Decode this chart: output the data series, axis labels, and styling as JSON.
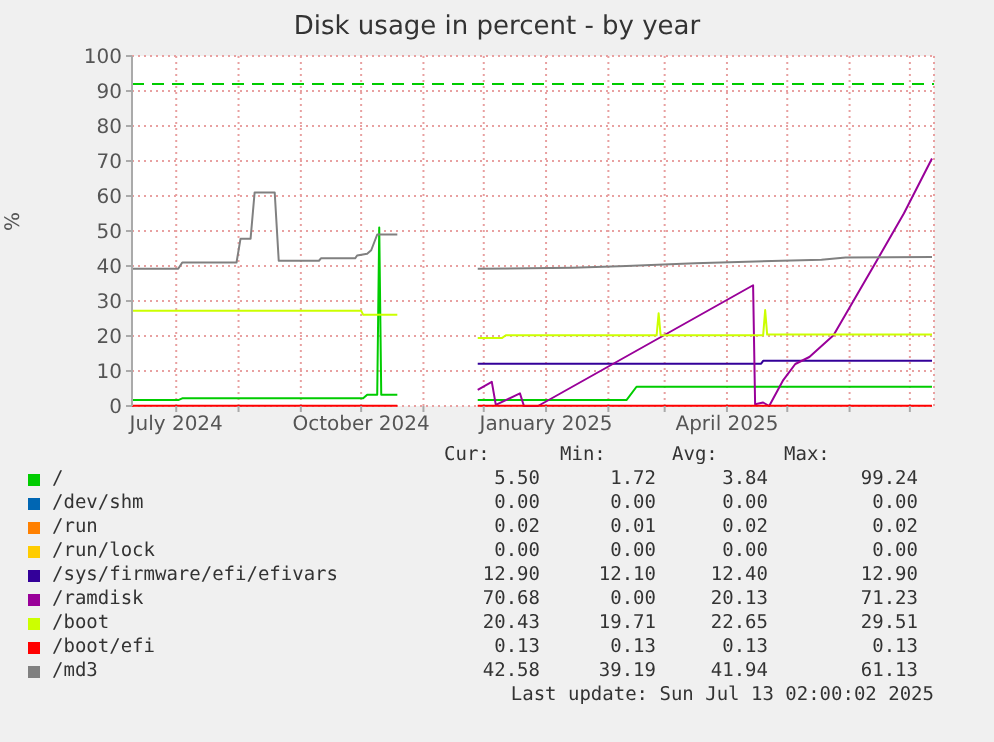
{
  "chart_data": {
    "type": "line",
    "title": "Disk usage in percent - by year",
    "ylabel": "%",
    "xlim": [
      "2024-06-09",
      "2025-07-13"
    ],
    "xticks": [
      {
        "value": "2024-07-01",
        "label": "July 2024"
      },
      {
        "value": "2024-08-01",
        "label": null
      },
      {
        "value": "2024-09-01",
        "label": null
      },
      {
        "value": "2024-10-01",
        "label": "October 2024"
      },
      {
        "value": "2024-11-01",
        "label": null
      },
      {
        "value": "2024-12-01",
        "label": null
      },
      {
        "value": "2025-01-01",
        "label": "January 2025"
      },
      {
        "value": "2025-02-01",
        "label": null
      },
      {
        "value": "2025-03-01",
        "label": null
      },
      {
        "value": "2025-04-01",
        "label": "April 2025"
      },
      {
        "value": "2025-05-01",
        "label": null
      },
      {
        "value": "2025-06-01",
        "label": null
      },
      {
        "value": "2025-07-01",
        "label": null
      }
    ],
    "ylim": [
      0,
      100
    ],
    "yticks": [
      0,
      10,
      20,
      30,
      40,
      50,
      60,
      70,
      80,
      90,
      100
    ],
    "grid": true,
    "legend": "bottom",
    "ref_lines": [
      {
        "axis": "y",
        "value": 92,
        "color": "#00cc00",
        "line_style": "dashed"
      }
    ],
    "series": [
      {
        "name": "/",
        "color": "#00cc00",
        "x": [
          "2024-06-09",
          "2024-07-02",
          "2024-07-04",
          "2024-10-02",
          "2024-10-04",
          "2024-10-09",
          "2024-10-10",
          "2024-10-11",
          "2024-10-19",
          "2024-11-01",
          "2024-11-28",
          "2025-02-10",
          "2025-02-15",
          "2025-07-12"
        ],
        "values": [
          1.7,
          1.7,
          2.2,
          2.2,
          3.2,
          3.2,
          51,
          3.2,
          3.2,
          null,
          1.7,
          1.7,
          5.5,
          5.5
        ]
      },
      {
        "name": "/dev/shm",
        "color": "#0066b3"
      },
      {
        "name": "/run",
        "color": "#ff8000"
      },
      {
        "name": "/run/lock",
        "color": "#ffcc00"
      },
      {
        "name": "/sys/firmware/efi/efivars",
        "color": "#330099",
        "x": [
          "2024-11-28",
          "2025-04-18",
          "2025-04-19",
          "2025-07-12"
        ],
        "values": [
          12.1,
          12.1,
          12.9,
          12.9
        ]
      },
      {
        "name": "/ramdisk",
        "color": "#990099",
        "x": [
          "2024-11-28",
          "2024-12-05",
          "2024-12-07",
          "2024-12-19",
          "2024-12-21",
          "2024-12-28",
          "2025-04-14",
          "2025-04-15",
          "2025-04-19",
          "2025-04-22",
          "2025-04-29",
          "2025-05-05",
          "2025-05-12",
          "2025-05-24",
          "2025-06-14",
          "2025-06-28",
          "2025-07-12"
        ],
        "values": [
          4.6,
          6.9,
          0.3,
          3.6,
          0,
          0,
          34.5,
          0.5,
          1,
          0,
          7.4,
          12,
          14,
          20.2,
          41,
          55,
          70.7
        ]
      },
      {
        "name": "/boot",
        "color": "#ccff00",
        "x": [
          "2024-06-09",
          "2024-10-01",
          "2024-10-02",
          "2024-10-19",
          "2024-11-01",
          "2024-11-28",
          "2024-12-10",
          "2024-12-12",
          "2025-02-25",
          "2025-02-26",
          "2025-02-27",
          "2025-04-19",
          "2025-04-20",
          "2025-04-21",
          "2025-07-12"
        ],
        "values": [
          27.2,
          27.2,
          26.1,
          26.1,
          null,
          19.4,
          19.4,
          20.2,
          20.2,
          26.5,
          20.2,
          20.2,
          27.4,
          20.4,
          20.4
        ]
      },
      {
        "name": "/boot/efi",
        "color": "#ff0000",
        "x": [
          "2024-06-09",
          "2024-10-19",
          "2024-11-01",
          "2024-11-28",
          "2025-07-12"
        ],
        "values": [
          0.1,
          0.1,
          null,
          0.1,
          0.1
        ]
      },
      {
        "name": "/md3",
        "color": "#808080",
        "x": [
          "2024-06-09",
          "2024-07-02",
          "2024-07-04",
          "2024-07-31",
          "2024-08-02",
          "2024-08-07",
          "2024-08-09",
          "2024-08-19",
          "2024-08-21",
          "2024-09-10",
          "2024-09-11",
          "2024-09-28",
          "2024-09-29",
          "2024-10-04",
          "2024-10-06",
          "2024-10-09",
          "2024-10-19",
          "2024-11-01",
          "2024-11-28",
          "2025-01-14",
          "2025-02-10",
          "2025-03-16",
          "2025-05-18",
          "2025-05-30",
          "2025-07-12"
        ],
        "values": [
          39.2,
          39.2,
          41,
          41,
          47.8,
          47.8,
          61,
          61,
          41.5,
          41.5,
          42.2,
          42.2,
          43,
          43.5,
          44.5,
          49,
          49,
          null,
          39.2,
          39.5,
          40,
          40.8,
          41.8,
          42.4,
          42.6
        ]
      }
    ],
    "annotations": [
      "Cur:",
      "Min:",
      "Avg:",
      "Max:",
      "5.50",
      "1.72",
      "3.84",
      "99.24",
      "0.00",
      "0.00",
      "0.00",
      "0.00",
      "0.02",
      "0.01",
      "0.02",
      "0.02",
      "0.00",
      "0.00",
      "0.00",
      "0.00",
      "12.90",
      "12.10",
      "12.40",
      "12.90",
      "70.68",
      "0.00",
      "20.13",
      "71.23",
      "20.43",
      "19.71",
      "22.65",
      "29.51",
      "0.13",
      "0.13",
      "0.13",
      "0.13",
      "42.58",
      "39.19",
      "41.94",
      "61.13",
      "Last update: Sun Jul 13 02:00:02 2025"
    ]
  }
}
